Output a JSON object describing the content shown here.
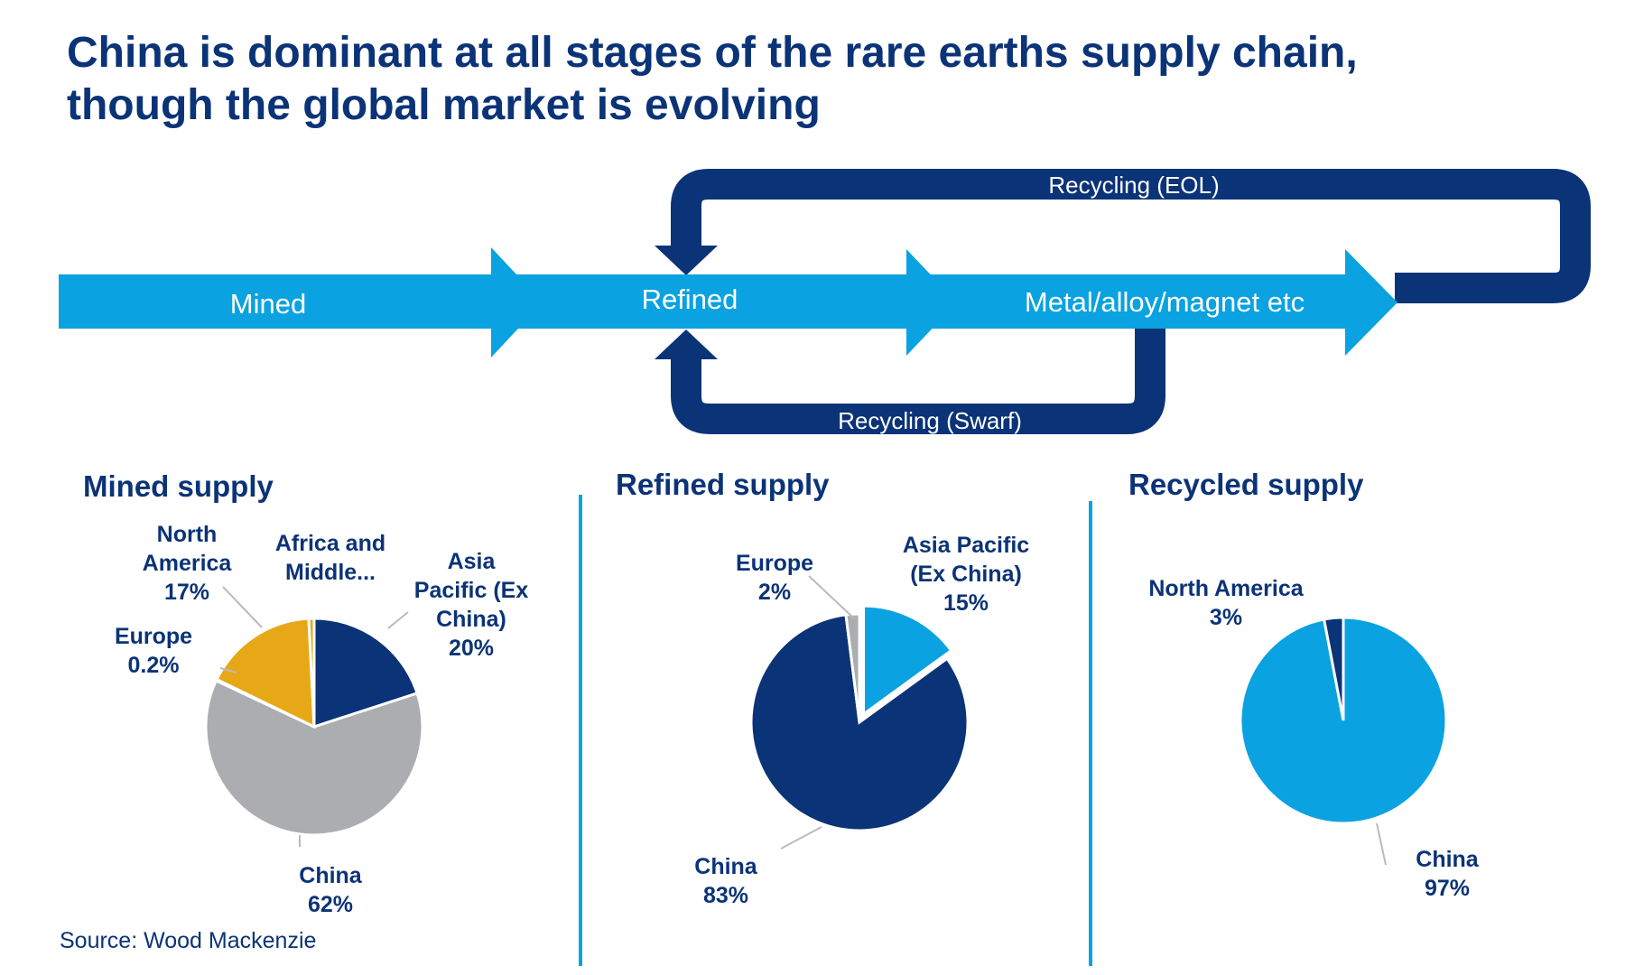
{
  "title": {
    "line1": "China is dominant at all stages of the rare earths supply chain,",
    "line2": "though the global market is evolving"
  },
  "flow": {
    "stages": [
      "Mined",
      "Refined",
      "Metal/alloy/magnet etc"
    ],
    "recycling_eol": "Recycling (EOL)",
    "recycling_swarf": "Recycling (Swarf)"
  },
  "colors": {
    "light_blue": "#0aa2e0",
    "dark_blue": "#0b3377",
    "grey": "#acadb0",
    "gold": "#e6a816"
  },
  "chart_data": [
    {
      "type": "pie",
      "title": "Mined supply",
      "slices": [
        {
          "label": [
            "Asia",
            "Pacific (Ex",
            "China)"
          ],
          "value": 20,
          "value_text": "20%",
          "color": "#0b3377"
        },
        {
          "label": [
            "China"
          ],
          "value": 62,
          "value_text": "62%",
          "color": "#acadb0"
        },
        {
          "label": [
            "Europe"
          ],
          "value": 0.2,
          "value_text": "0.2%",
          "color": "#0aa2e0"
        },
        {
          "label": [
            "North",
            "America"
          ],
          "value": 17,
          "value_text": "17%",
          "color": "#e6a816"
        },
        {
          "label": [
            "Africa and",
            "Middle..."
          ],
          "value": 0.8,
          "value_text": "",
          "color": "#e6a816"
        }
      ]
    },
    {
      "type": "pie",
      "title": "Refined supply",
      "slices": [
        {
          "label": [
            "Asia Pacific",
            "(Ex China)"
          ],
          "value": 15,
          "value_text": "15%",
          "color": "#0aa2e0"
        },
        {
          "label": [
            "China"
          ],
          "value": 83,
          "value_text": "83%",
          "color": "#0b3377"
        },
        {
          "label": [
            "Europe"
          ],
          "value": 2,
          "value_text": "2%",
          "color": "#acadb0"
        }
      ]
    },
    {
      "type": "pie",
      "title": "Recycled supply",
      "slices": [
        {
          "label": [
            "China"
          ],
          "value": 97,
          "value_text": "97%",
          "color": "#0aa2e0"
        },
        {
          "label": [
            "North America"
          ],
          "value": 3,
          "value_text": "3%",
          "color": "#0b3377"
        }
      ]
    }
  ],
  "source": "Source: Wood Mackenzie"
}
